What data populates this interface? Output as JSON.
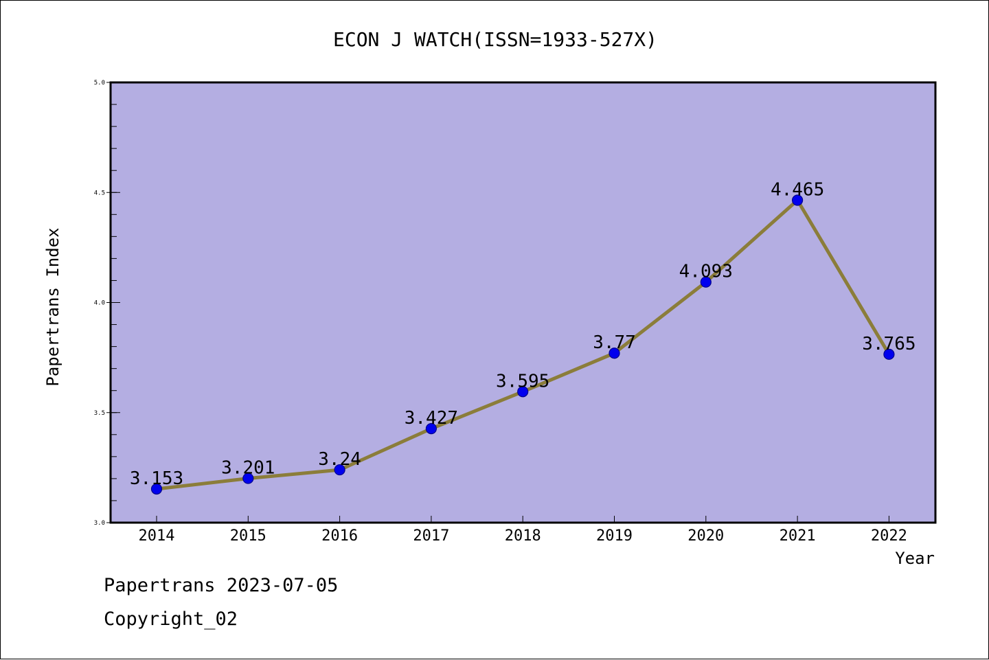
{
  "chart_data": {
    "type": "line",
    "title": "ECON J WATCH(ISSN=1933-527X)",
    "xlabel": "Year",
    "ylabel": "Papertrans Index",
    "categories": [
      "2014",
      "2015",
      "2016",
      "2017",
      "2018",
      "2019",
      "2020",
      "2021",
      "2022"
    ],
    "series": [
      {
        "values": [
          3.153,
          3.201,
          3.24,
          3.427,
          3.595,
          3.77,
          4.093,
          4.465,
          3.765
        ],
        "data_labels": [
          "3.153",
          "3.201",
          "3.24",
          "3.427",
          "3.595",
          "3.77",
          "4.093",
          "4.465",
          "3.765"
        ]
      }
    ],
    "ylim": [
      3.0,
      5.0
    ],
    "y_ticks": [
      "3.0",
      "3.5",
      "4.0",
      "4.5",
      "5.0"
    ],
    "y_minor_step": 0.1,
    "grid": false,
    "legend": "none"
  },
  "colors": {
    "plot_background": "#b4aee2",
    "line": "#8b7d3a",
    "marker": "#0000ee",
    "marker_edge": "#00008b",
    "axes": "#000000"
  },
  "footer": {
    "date_line": "Papertrans 2023-07-05",
    "copyright_line": "Copyright_02"
  }
}
